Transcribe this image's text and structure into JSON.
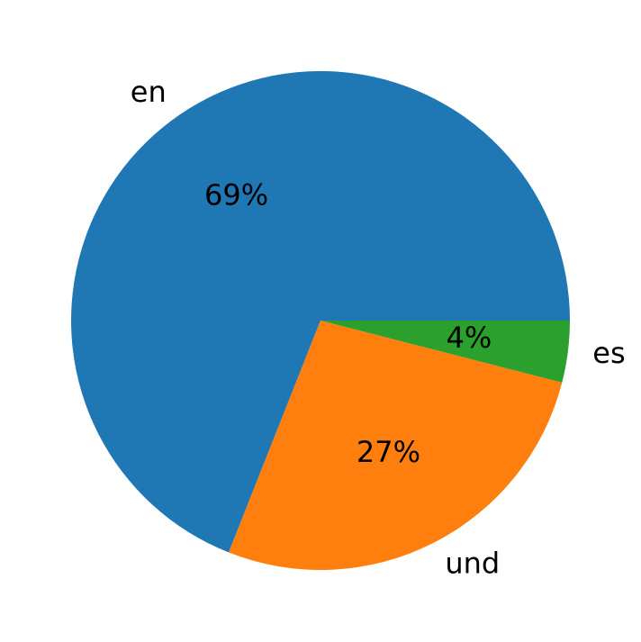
{
  "chart_data": {
    "type": "pie",
    "categories": [
      "en",
      "und",
      "es"
    ],
    "values": [
      69,
      27,
      4
    ],
    "value_labels": [
      "69%",
      "27%",
      "4%"
    ],
    "colors": [
      "#1f77b4",
      "#ff7f0e",
      "#2ca02c"
    ]
  }
}
